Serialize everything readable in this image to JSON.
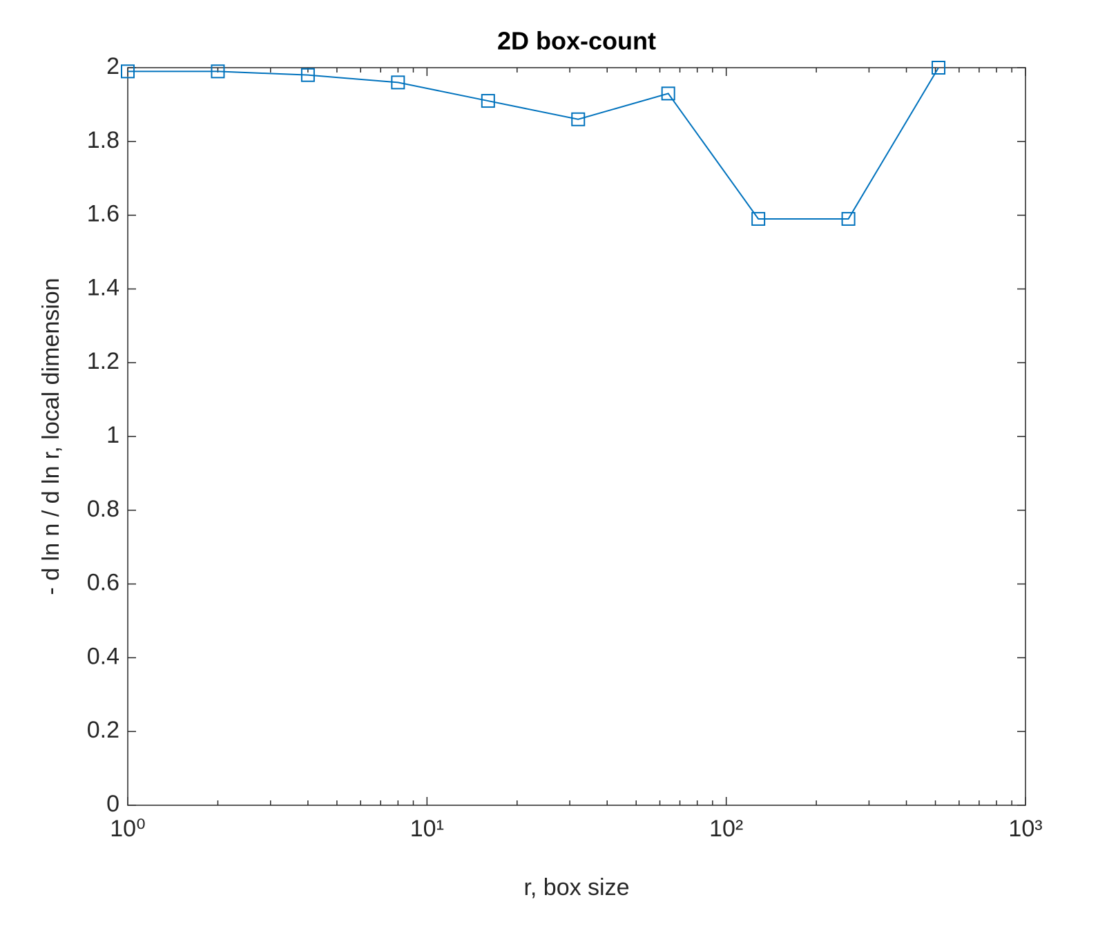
{
  "chart_data": {
    "type": "line",
    "title": "2D box-count",
    "xlabel": "r, box size",
    "ylabel": "- d ln n / d ln r, local dimension",
    "xscale": "log",
    "x": [
      1,
      2,
      4,
      8,
      16,
      32,
      64,
      128,
      256,
      512
    ],
    "series": [
      {
        "color": "#0072bd",
        "marker": "square",
        "values": [
          1.99,
          1.99,
          1.98,
          1.96,
          1.91,
          1.86,
          1.93,
          1.59,
          1.59,
          2.0
        ]
      }
    ],
    "xlim": [
      1,
      1000
    ],
    "xticks": [
      {
        "value": 1,
        "label": "10⁰"
      },
      {
        "value": 10,
        "label": "10¹"
      },
      {
        "value": 100,
        "label": "10²"
      },
      {
        "value": 1000,
        "label": "10³"
      }
    ],
    "xminorticks": [
      2,
      3,
      4,
      5,
      6,
      7,
      8,
      9,
      20,
      30,
      40,
      50,
      60,
      70,
      80,
      90,
      200,
      300,
      400,
      500,
      600,
      700,
      800,
      900
    ],
    "ylim": [
      0,
      2
    ],
    "yticks": [
      0,
      0.2,
      0.4,
      0.6,
      0.8,
      1,
      1.2,
      1.4,
      1.6,
      1.8,
      2
    ],
    "grid": false
  }
}
